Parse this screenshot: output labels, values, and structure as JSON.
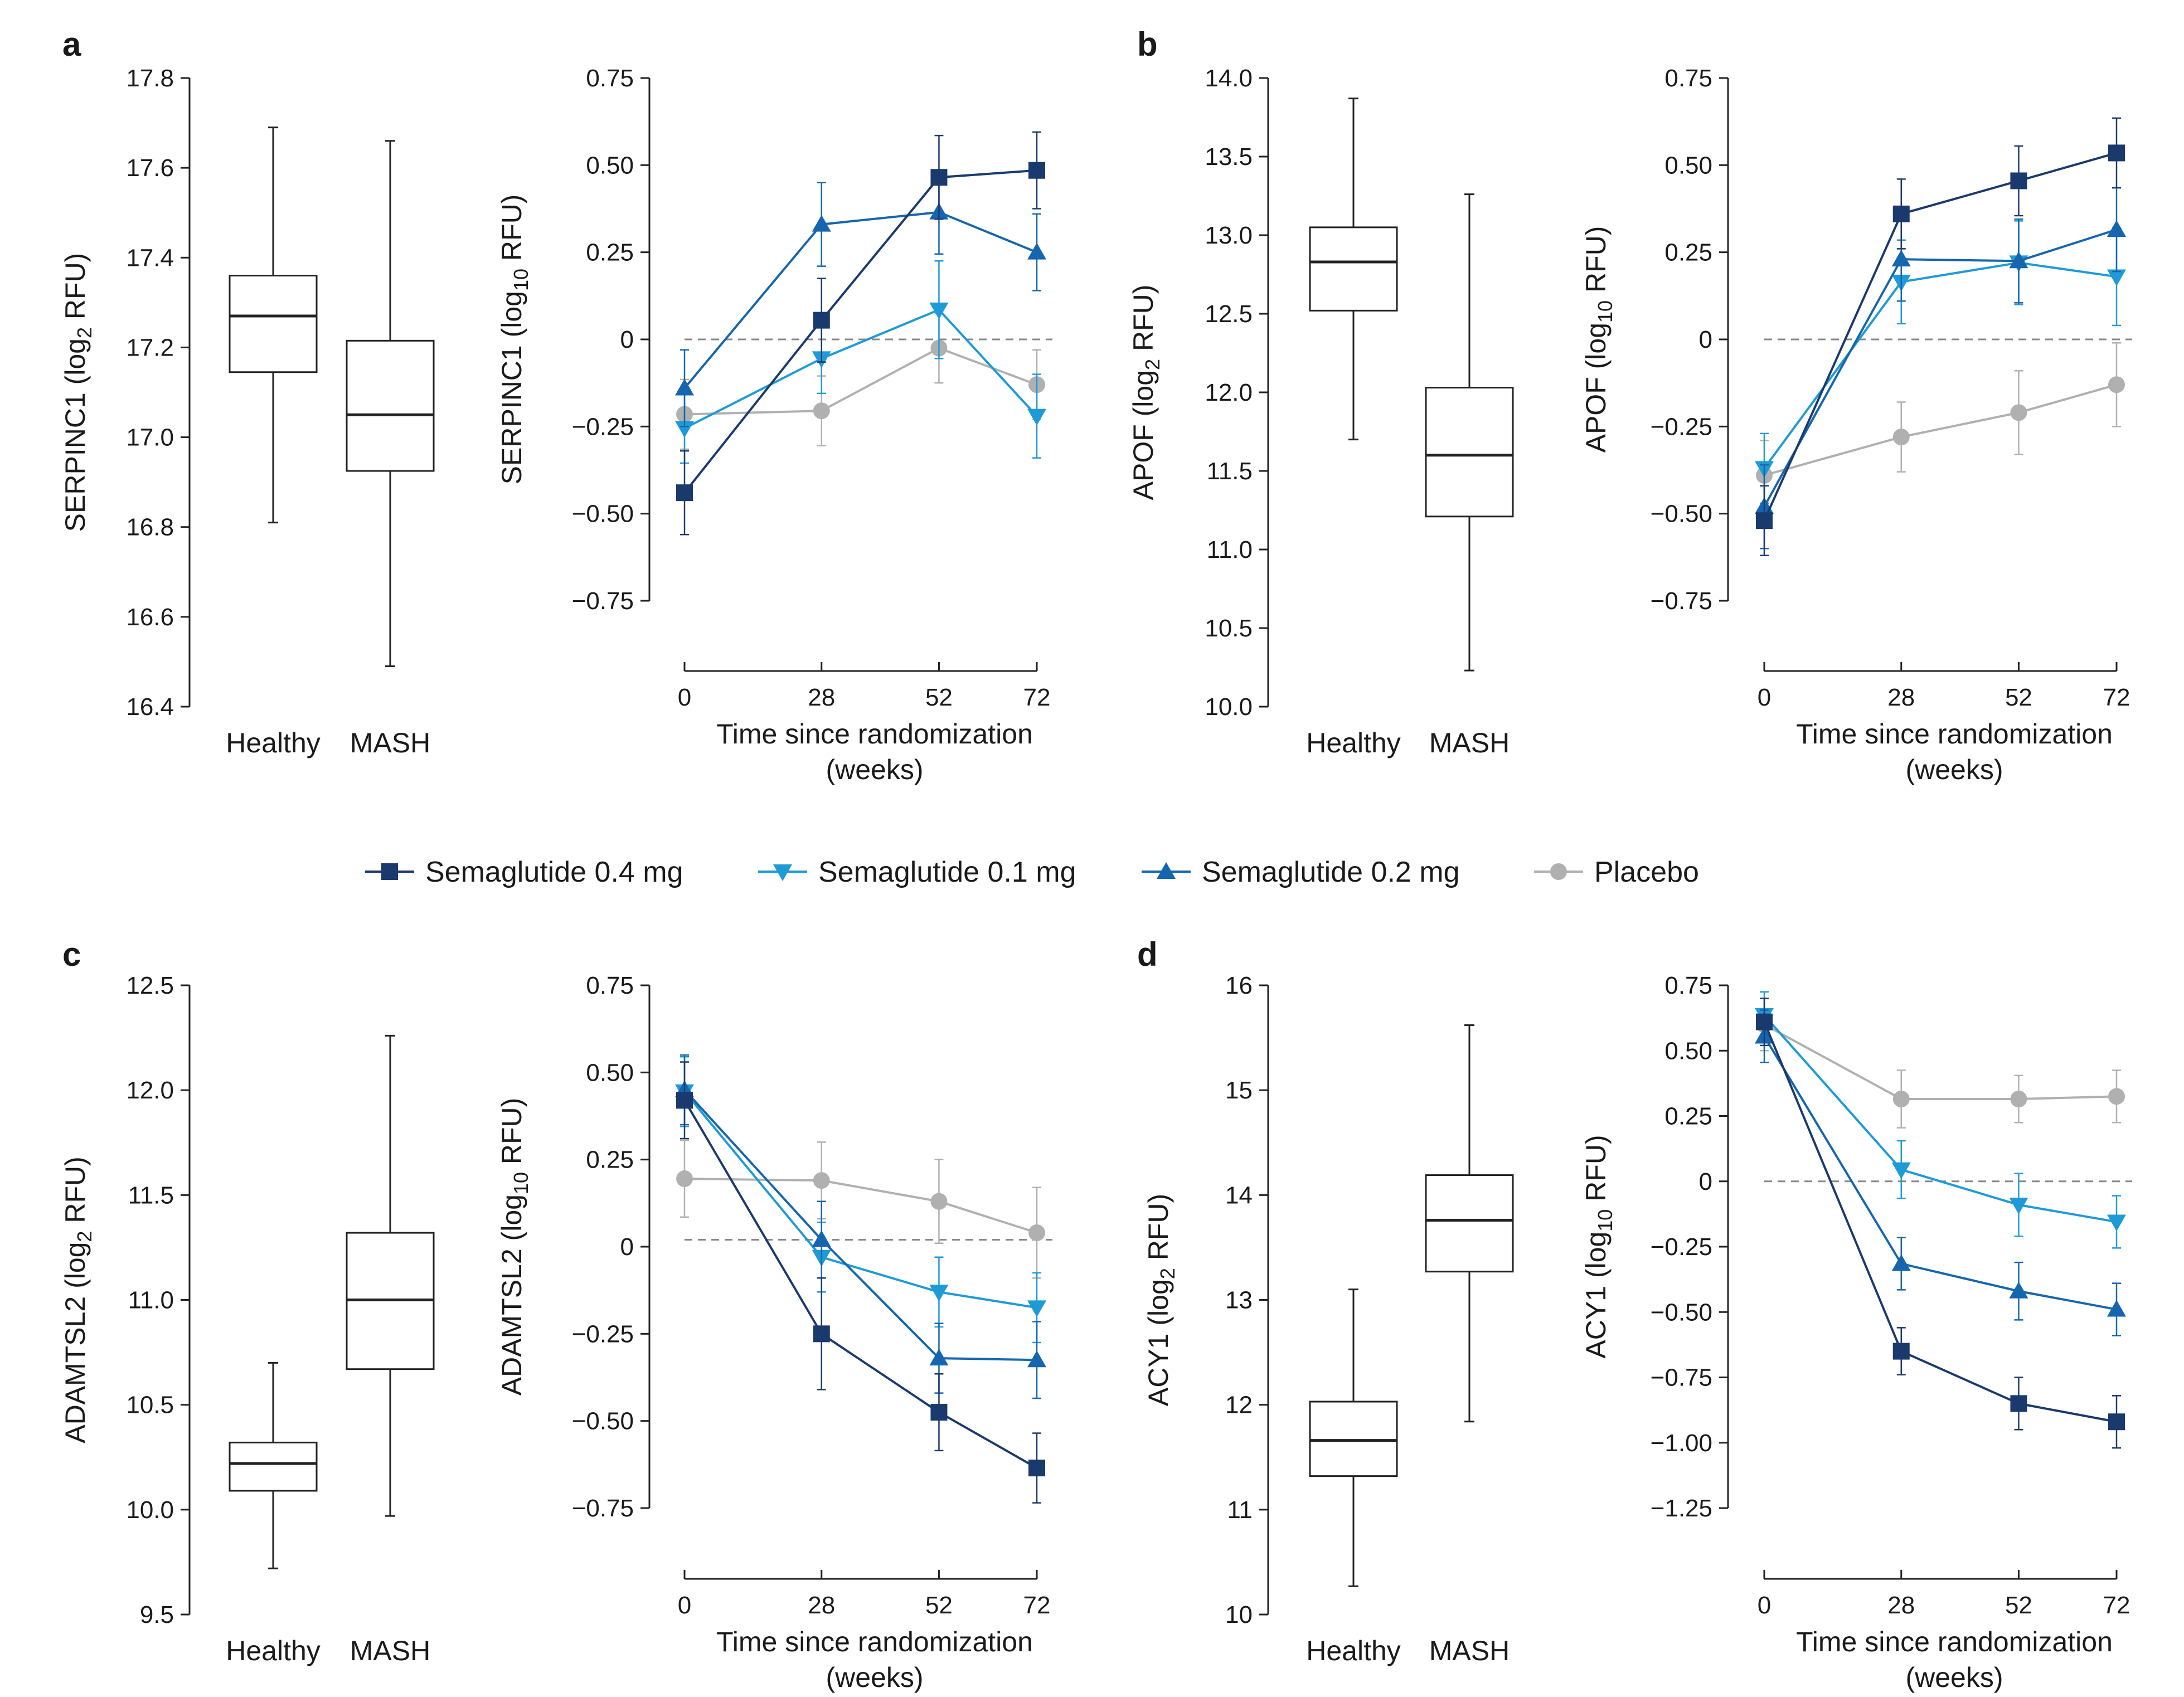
{
  "colors": {
    "sema04": "#1a3a6e",
    "sema01": "#1e9bd7",
    "sema02": "#1566ae",
    "placebo": "#b0b0b0",
    "axis": "#222222",
    "zero_line": "#888888"
  },
  "legend": {
    "items": [
      {
        "label": "Semaglutide 0.4 mg",
        "marker": "square",
        "color_key": "sema04"
      },
      {
        "label": "Semaglutide 0.1 mg",
        "marker": "triangle-down",
        "color_key": "sema01"
      },
      {
        "label": "Semaglutide 0.2 mg",
        "marker": "triangle-up",
        "color_key": "sema02"
      },
      {
        "label": "Placebo",
        "marker": "circle",
        "color_key": "placebo"
      }
    ]
  },
  "chart_data": [
    {
      "panel": "a",
      "box": {
        "type": "box",
        "ylabel_main": "SERPINC1 (log",
        "ylabel_sub": "2",
        "ylabel_end": " RFU)",
        "ylim": [
          16.4,
          17.8
        ],
        "ticks": [
          16.4,
          16.6,
          16.8,
          17.0,
          17.2,
          17.4,
          17.6,
          17.8
        ],
        "tick_labels": [
          "16.4",
          "16.6",
          "16.8",
          "17.0",
          "17.2",
          "17.4",
          "17.6",
          "17.8"
        ],
        "categories": [
          "Healthy",
          "MASH"
        ],
        "boxes": [
          {
            "min": 16.81,
            "q1": 17.145,
            "median": 17.27,
            "q3": 17.36,
            "max": 17.69
          },
          {
            "min": 16.49,
            "q1": 16.925,
            "median": 17.05,
            "q3": 17.215,
            "max": 17.66
          }
        ]
      },
      "line": {
        "type": "line",
        "ylabel_main": "SERPINC1 (log",
        "ylabel_sub": "10",
        "ylabel_end": " RFU)",
        "ylim": [
          -0.75,
          0.75
        ],
        "ticks": [
          -0.75,
          -0.5,
          -0.25,
          0,
          0.25,
          0.5,
          0.75
        ],
        "tick_labels": [
          "−0.75",
          "−0.50",
          "−0.25",
          "0",
          "0.25",
          "0.50",
          "0.75"
        ],
        "x": [
          0,
          28,
          52,
          72
        ],
        "x_tick_labels": [
          "0",
          "28",
          "52",
          "72"
        ],
        "xlabel_line1": "Time since randomization",
        "xlabel_line2": "(weeks)",
        "ref_line": 0,
        "series": [
          {
            "name": "Placebo",
            "color_key": "placebo",
            "marker": "circle",
            "values": [
              -0.215,
              -0.205,
              -0.025,
              -0.13
            ],
            "err": [
              0.1,
              0.1,
              0.1,
              0.1
            ]
          },
          {
            "name": "Semaglutide 0.1 mg",
            "color_key": "sema01",
            "marker": "triangle-down",
            "values": [
              -0.255,
              -0.055,
              0.085,
              -0.22
            ],
            "err": [
              0.1,
              0.1,
              0.14,
              0.12
            ]
          },
          {
            "name": "Semaglutide 0.2 mg",
            "color_key": "sema02",
            "marker": "triangle-up",
            "values": [
              -0.14,
              0.33,
              0.365,
              0.25
            ],
            "err": [
              0.11,
              0.12,
              0.12,
              0.11
            ]
          },
          {
            "name": "Semaglutide 0.4 mg",
            "color_key": "sema04",
            "marker": "square",
            "values": [
              -0.44,
              0.055,
              0.465,
              0.485
            ],
            "err": [
              0.12,
              0.12,
              0.12,
              0.11
            ]
          }
        ]
      }
    },
    {
      "panel": "b",
      "box": {
        "type": "box",
        "ylabel_main": "APOF (log",
        "ylabel_sub": "2",
        "ylabel_end": " RFU)",
        "ylim": [
          10.0,
          14.0
        ],
        "ticks": [
          10.0,
          10.5,
          11.0,
          11.5,
          12.0,
          12.5,
          13.0,
          13.5,
          14.0
        ],
        "tick_labels": [
          "10.0",
          "10.5",
          "11.0",
          "11.5",
          "12.0",
          "12.5",
          "13.0",
          "13.5",
          "14.0"
        ],
        "categories": [
          "Healthy",
          "MASH"
        ],
        "boxes": [
          {
            "min": 11.7,
            "q1": 12.52,
            "median": 12.83,
            "q3": 13.05,
            "max": 13.87
          },
          {
            "min": 10.23,
            "q1": 11.21,
            "median": 11.6,
            "q3": 12.03,
            "max": 13.26
          }
        ]
      },
      "line": {
        "type": "line",
        "ylabel_main": "APOF (log",
        "ylabel_sub": "10",
        "ylabel_end": " RFU)",
        "ylim": [
          -0.75,
          0.75
        ],
        "ticks": [
          -0.75,
          -0.5,
          -0.25,
          0,
          0.25,
          0.5,
          0.75
        ],
        "tick_labels": [
          "−0.75",
          "−0.50",
          "−0.25",
          "0",
          "0.25",
          "0.50",
          "0.75"
        ],
        "x": [
          0,
          28,
          52,
          72
        ],
        "x_tick_labels": [
          "0",
          "28",
          "52",
          "72"
        ],
        "xlabel_line1": "Time since randomization",
        "xlabel_line2": "(weeks)",
        "ref_line": 0,
        "series": [
          {
            "name": "Placebo",
            "color_key": "placebo",
            "marker": "circle",
            "values": [
              -0.39,
              -0.28,
              -0.21,
              -0.13
            ],
            "err": [
              0.1,
              0.1,
              0.12,
              0.12
            ]
          },
          {
            "name": "Semaglutide 0.1 mg",
            "color_key": "sema01",
            "marker": "triangle-down",
            "values": [
              -0.37,
              0.165,
              0.22,
              0.18
            ],
            "err": [
              0.1,
              0.12,
              0.12,
              0.14
            ]
          },
          {
            "name": "Semaglutide 0.2 mg",
            "color_key": "sema02",
            "marker": "triangle-up",
            "values": [
              -0.48,
              0.23,
              0.225,
              0.315
            ],
            "err": [
              0.12,
              0.12,
              0.12,
              0.12
            ]
          },
          {
            "name": "Semaglutide 0.4 mg",
            "color_key": "sema04",
            "marker": "square",
            "values": [
              -0.52,
              0.36,
              0.455,
              0.535
            ],
            "err": [
              0.1,
              0.1,
              0.1,
              0.1
            ]
          }
        ]
      }
    },
    {
      "panel": "c",
      "box": {
        "type": "box",
        "ylabel_main": "ADAMTSL2 (log",
        "ylabel_sub": "2",
        "ylabel_end": " RFU)",
        "ylim": [
          9.5,
          12.5
        ],
        "ticks": [
          9.5,
          10.0,
          10.5,
          11.0,
          11.5,
          12.0,
          12.5
        ],
        "tick_labels": [
          "9.5",
          "10.0",
          "10.5",
          "11.0",
          "11.5",
          "12.0",
          "12.5"
        ],
        "categories": [
          "Healthy",
          "MASH"
        ],
        "boxes": [
          {
            "min": 9.72,
            "q1": 10.09,
            "median": 10.22,
            "q3": 10.32,
            "max": 10.7
          },
          {
            "min": 9.97,
            "q1": 10.67,
            "median": 11.0,
            "q3": 11.32,
            "max": 12.26
          }
        ]
      },
      "line": {
        "type": "line",
        "ylabel_main": "ADAMTSL2 (log",
        "ylabel_sub": "10",
        "ylabel_end": " RFU)",
        "ylim": [
          -0.75,
          0.75
        ],
        "ticks": [
          -0.75,
          -0.5,
          -0.25,
          0,
          0.25,
          0.5,
          0.75
        ],
        "tick_labels": [
          "−0.75",
          "−0.50",
          "−0.25",
          "0",
          "0.25",
          "0.50",
          "0.75"
        ],
        "x": [
          0,
          28,
          52,
          72
        ],
        "x_tick_labels": [
          "0",
          "28",
          "52",
          "72"
        ],
        "xlabel_line1": "Time since randomization",
        "xlabel_line2": "(weeks)",
        "ref_line": 0.02,
        "series": [
          {
            "name": "Placebo",
            "color_key": "placebo",
            "marker": "circle",
            "values": [
              0.195,
              0.19,
              0.13,
              0.04
            ],
            "err": [
              0.11,
              0.11,
              0.12,
              0.13
            ]
          },
          {
            "name": "Semaglutide 0.1 mg",
            "color_key": "sema01",
            "marker": "triangle-down",
            "values": [
              0.445,
              -0.03,
              -0.13,
              -0.175
            ],
            "err": [
              0.1,
              0.1,
              0.1,
              0.1
            ]
          },
          {
            "name": "Semaglutide 0.2 mg",
            "color_key": "sema02",
            "marker": "triangle-up",
            "values": [
              0.45,
              0.02,
              -0.32,
              -0.325
            ],
            "err": [
              0.1,
              0.11,
              0.1,
              0.11
            ]
          },
          {
            "name": "Semaglutide 0.4 mg",
            "color_key": "sema04",
            "marker": "square",
            "values": [
              0.42,
              -0.25,
              -0.475,
              -0.635
            ],
            "err": [
              0.11,
              0.16,
              0.11,
              0.1
            ]
          }
        ]
      }
    },
    {
      "panel": "d",
      "box": {
        "type": "box",
        "ylabel_main": "ACY1 (log",
        "ylabel_sub": "2",
        "ylabel_end": " RFU)",
        "ylim": [
          10,
          16
        ],
        "ticks": [
          10,
          11,
          12,
          13,
          14,
          15,
          16
        ],
        "tick_labels": [
          "10",
          "11",
          "12",
          "13",
          "14",
          "15",
          "16"
        ],
        "categories": [
          "Healthy",
          "MASH"
        ],
        "boxes": [
          {
            "min": 10.27,
            "q1": 11.32,
            "median": 11.66,
            "q3": 12.03,
            "max": 13.1
          },
          {
            "min": 11.84,
            "q1": 13.27,
            "median": 13.76,
            "q3": 14.19,
            "max": 15.62
          }
        ]
      },
      "line": {
        "type": "line",
        "ylabel_main": "ACY1 (log",
        "ylabel_sub": "10",
        "ylabel_end": " RFU)",
        "ylim": [
          -1.25,
          0.75
        ],
        "ticks": [
          -1.25,
          -1.0,
          -0.75,
          -0.5,
          -0.25,
          0,
          0.25,
          0.5,
          0.75
        ],
        "tick_labels": [
          "−1.25",
          "−1.00",
          "−0.75",
          "−0.50",
          "−0.25",
          "0",
          "0.25",
          "0.50",
          "0.75"
        ],
        "x": [
          0,
          28,
          52,
          72
        ],
        "x_tick_labels": [
          "0",
          "28",
          "52",
          "72"
        ],
        "xlabel_line1": "Time since randomization",
        "xlabel_line2": "(weeks)",
        "ref_line": 0,
        "series": [
          {
            "name": "Placebo",
            "color_key": "placebo",
            "marker": "circle",
            "values": [
              0.6,
              0.315,
              0.315,
              0.325
            ],
            "err": [
              0.1,
              0.11,
              0.09,
              0.1
            ]
          },
          {
            "name": "Semaglutide 0.1 mg",
            "color_key": "sema01",
            "marker": "triangle-down",
            "values": [
              0.635,
              0.045,
              -0.09,
              -0.155
            ],
            "err": [
              0.09,
              0.11,
              0.12,
              0.1
            ]
          },
          {
            "name": "Semaglutide 0.2 mg",
            "color_key": "sema02",
            "marker": "triangle-up",
            "values": [
              0.555,
              -0.315,
              -0.42,
              -0.49
            ],
            "err": [
              0.1,
              0.1,
              0.11,
              0.1
            ]
          },
          {
            "name": "Semaglutide 0.4 mg",
            "color_key": "sema04",
            "marker": "square",
            "values": [
              0.61,
              -0.65,
              -0.85,
              -0.92
            ],
            "err": [
              0.09,
              0.09,
              0.1,
              0.1
            ]
          }
        ]
      }
    }
  ]
}
